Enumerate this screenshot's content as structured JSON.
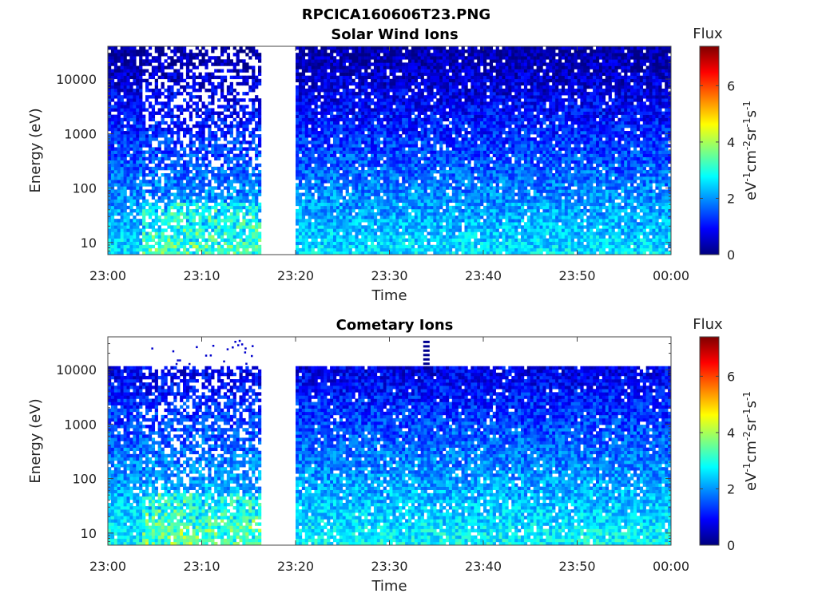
{
  "figure_title": "RPCICA160606T23.PNG",
  "colormap": [
    "#00007f",
    "#0000ff",
    "#007fff",
    "#00ffff",
    "#7fff7f",
    "#ffff00",
    "#ff7f00",
    "#ff0000",
    "#7f0000"
  ],
  "chart_data": [
    {
      "type": "heatmap",
      "title": "Solar Wind Ions",
      "xlabel": "Time",
      "ylabel": "Energy (eV)",
      "x_range": [
        "23:00",
        "00:00"
      ],
      "x_ticks": [
        "23:00",
        "23:10",
        "23:20",
        "23:30",
        "23:40",
        "23:50",
        "00:00"
      ],
      "y_scale": "log",
      "y_range": [
        6,
        40000
      ],
      "y_ticks": [
        10,
        100,
        1000,
        10000
      ],
      "y_tick_labels": [
        "10",
        "100",
        "1000",
        "10000"
      ],
      "data_gap": [
        "23:16.5",
        "23:19.7"
      ],
      "colorbar": {
        "title": "Flux",
        "label": "eV-1cm-2sr-1s-1",
        "range": [
          0,
          7.4
        ],
        "ticks": [
          "0",
          "2",
          "4",
          "6"
        ]
      },
      "grid": false
    },
    {
      "type": "heatmap",
      "title": "Cometary Ions",
      "xlabel": "Time",
      "ylabel": "Energy (eV)",
      "x_range": [
        "23:00",
        "00:00"
      ],
      "x_ticks": [
        "23:00",
        "23:10",
        "23:20",
        "23:30",
        "23:40",
        "23:50",
        "00:00"
      ],
      "y_scale": "log",
      "y_range": [
        6,
        40000
      ],
      "y_ticks": [
        10,
        100,
        1000,
        10000
      ],
      "y_tick_labels": [
        "10",
        "100",
        "1000",
        "10000"
      ],
      "data_gap": [
        "23:16.5",
        "23:19.7"
      ],
      "colorbar": {
        "title": "Flux",
        "label": "eV-1cm-2sr-1s-1",
        "range": [
          0,
          7.4
        ],
        "ticks": [
          "0",
          "2",
          "4",
          "6"
        ]
      },
      "grid": false
    }
  ]
}
